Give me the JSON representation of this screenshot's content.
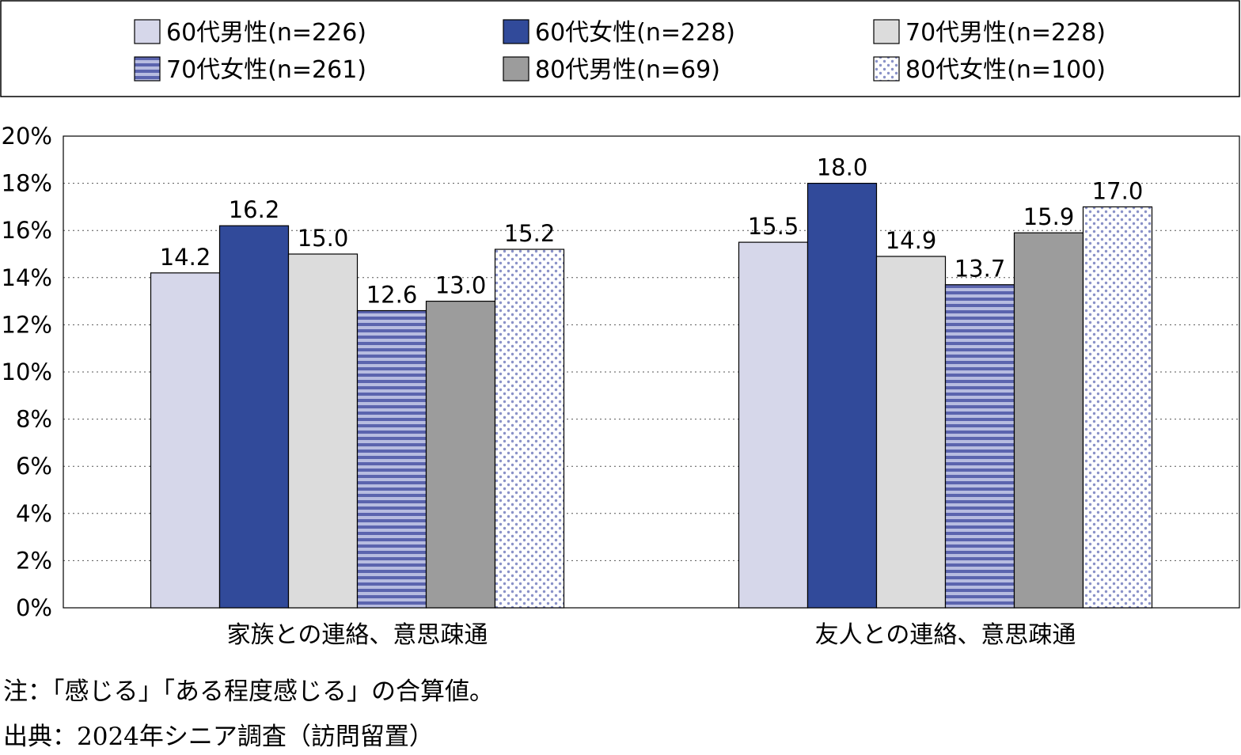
{
  "chart_data": {
    "type": "bar",
    "categories": [
      "家族との連絡、意思疎通",
      "友人との連絡、意思疎通"
    ],
    "series": [
      {
        "name": "60代男性(n=226)",
        "values": [
          14.2,
          15.5
        ],
        "color": "#d6d7ea",
        "pattern": "solid"
      },
      {
        "name": "60代女性(n=228)",
        "values": [
          16.2,
          18.0
        ],
        "color": "#314a9a",
        "pattern": "solid"
      },
      {
        "name": "70代男性(n=228)",
        "values": [
          15.0,
          14.9
        ],
        "color": "#dcdcdc",
        "pattern": "solid"
      },
      {
        "name": "70代女性(n=261)",
        "values": [
          12.6,
          13.7
        ],
        "color": "#6c75b6",
        "pattern": "stripes"
      },
      {
        "name": "80代男性(n=69)",
        "values": [
          13.0,
          15.9
        ],
        "color": "#9c9c9c",
        "pattern": "solid"
      },
      {
        "name": "80代女性(n=100)",
        "values": [
          15.2,
          17.0
        ],
        "color": "#8d96cc",
        "pattern": "dots"
      }
    ],
    "data_labels": [
      [
        "14.2",
        "15.5"
      ],
      [
        "16.2",
        "18.0"
      ],
      [
        "15.0",
        "14.9"
      ],
      [
        "12.6",
        "13.7"
      ],
      [
        "13.0",
        "15.9"
      ],
      [
        "15.2",
        "17.0"
      ]
    ],
    "yticks": [
      0,
      2,
      4,
      6,
      8,
      10,
      12,
      14,
      16,
      18,
      20
    ],
    "ytick_labels": [
      "0%",
      "2%",
      "4%",
      "6%",
      "8%",
      "10%",
      "12%",
      "14%",
      "16%",
      "18%",
      "20%"
    ],
    "ylim": [
      0,
      20
    ],
    "grid": true,
    "legend_position": "top"
  },
  "notes": {
    "note": "注：「感じる」「ある程度感じる」の合算値。",
    "source": "出典：2024年シニア調査（訪問留置）"
  }
}
